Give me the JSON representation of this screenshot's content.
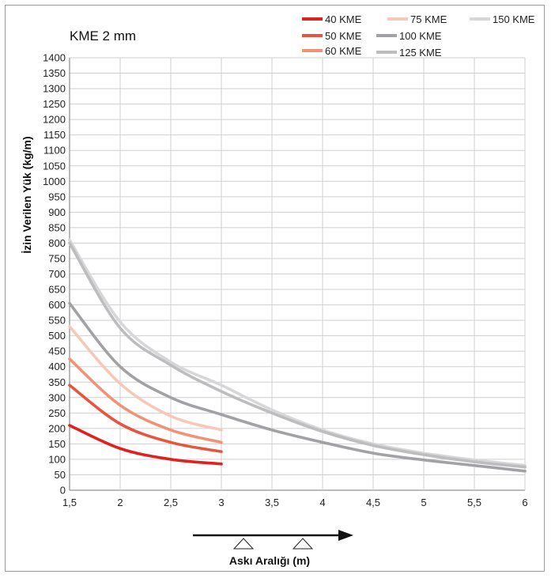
{
  "chart_data": {
    "type": "line",
    "title": "KME 2 mm",
    "xlabel": "Askı Aralığı (m)",
    "ylabel": "İzin Verilen Yük (kg/m)",
    "xlim": [
      1.5,
      6
    ],
    "ylim": [
      0,
      1400
    ],
    "x_ticks": [
      "1,5",
      "2",
      "2,5",
      "3",
      "3,5",
      "4",
      "4,5",
      "5",
      "5,5",
      "6"
    ],
    "y_ticks": [
      "0",
      "50",
      "100",
      "150",
      "200",
      "250",
      "300",
      "350",
      "400",
      "450",
      "500",
      "550",
      "600",
      "650",
      "700",
      "750",
      "800",
      "850",
      "900",
      "950",
      "1000",
      "1050",
      "1100",
      "1150",
      "1200",
      "1250",
      "1300",
      "1350",
      "1400"
    ],
    "grid": true,
    "legend_position": "top-right",
    "series": [
      {
        "name": "40 KME",
        "color": "#e2201f",
        "x": [
          1.5,
          2,
          2.5,
          3
        ],
        "y": [
          210,
          135,
          100,
          85
        ]
      },
      {
        "name": "50 KME",
        "color": "#e8553f",
        "x": [
          1.5,
          2,
          2.5,
          3
        ],
        "y": [
          340,
          215,
          155,
          125
        ]
      },
      {
        "name": "60 KME",
        "color": "#f0927a",
        "x": [
          1.5,
          2,
          2.5,
          3
        ],
        "y": [
          425,
          275,
          195,
          155
        ]
      },
      {
        "name": "75 KME",
        "color": "#f6c8b8",
        "x": [
          1.5,
          2,
          2.5,
          3
        ],
        "y": [
          530,
          345,
          240,
          195
        ]
      },
      {
        "name": "100 KME",
        "color": "#a2a2a6",
        "x": [
          1.5,
          2,
          2.5,
          3,
          3.5,
          4,
          4.5,
          5,
          5.5,
          6
        ],
        "y": [
          605,
          400,
          300,
          245,
          195,
          155,
          120,
          98,
          80,
          62
        ]
      },
      {
        "name": "125 KME",
        "color": "#bdbdc0",
        "x": [
          1.5,
          2,
          2.5,
          3,
          3.5,
          4,
          4.5,
          5,
          5.5,
          6
        ],
        "y": [
          800,
          525,
          405,
          320,
          250,
          190,
          145,
          115,
          92,
          75
        ]
      },
      {
        "name": "150 KME",
        "color": "#d7d7da",
        "x": [
          1.5,
          2,
          2.5,
          3,
          3.5,
          4,
          4.5,
          5,
          5.5,
          6
        ],
        "y": [
          810,
          545,
          415,
          340,
          260,
          195,
          150,
          120,
          98,
          80
        ]
      }
    ]
  }
}
